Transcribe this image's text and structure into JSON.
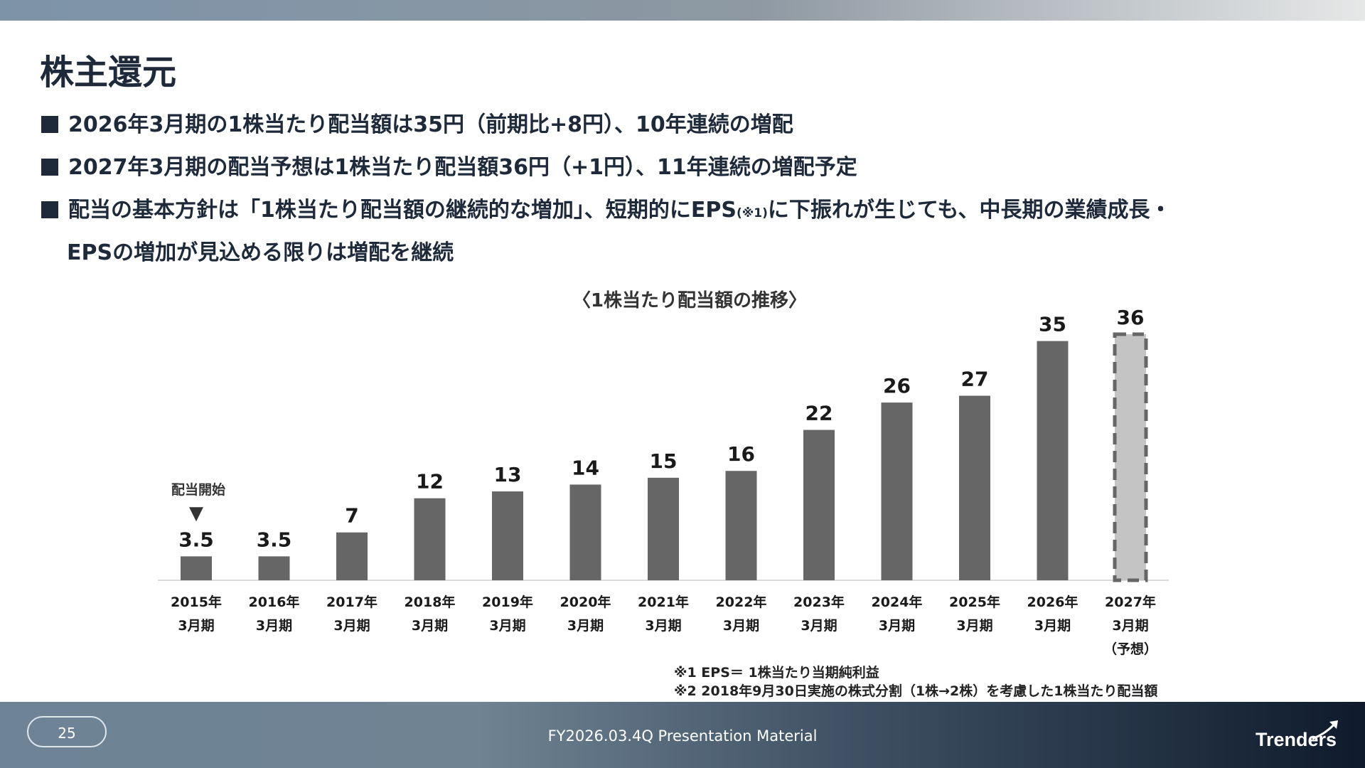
{
  "page": {
    "title": "株主還元",
    "page_number": "25",
    "footer_text": "FY2026.03.4Q Presentation Material",
    "logo_text": "Trenders"
  },
  "bullets": [
    {
      "text": "2026年3月期の1株当たり配当額は35円（前期比+8円）、10年連続の増配"
    },
    {
      "text": "2027年3月期の配当予想は1株当たり配当額36円（+1円）、11年連続の増配予定"
    },
    {
      "text_before": "配当の基本方針は「1株当たり配当額の継続的な増加」、短期的にEPS",
      "note": "(※1)",
      "text_after": "に下振れが生じても、中長期の業績成長・",
      "continuation": "EPSの増加が見込める限りは増配を継続"
    }
  ],
  "footnotes": [
    "※1 EPS＝ 1株当たり当期純利益",
    "※2 2018年9月30日実施の株式分割（1株→2株）を考慮した1株当たり配当額"
  ],
  "chart_data": {
    "type": "bar",
    "title": "〈1株当たり配当額の推移〉",
    "categories": [
      [
        "2015年",
        "3月期"
      ],
      [
        "2016年",
        "3月期"
      ],
      [
        "2017年",
        "3月期"
      ],
      [
        "2018年",
        "3月期"
      ],
      [
        "2019年",
        "3月期"
      ],
      [
        "2020年",
        "3月期"
      ],
      [
        "2021年",
        "3月期"
      ],
      [
        "2022年",
        "3月期"
      ],
      [
        "2023年",
        "3月期"
      ],
      [
        "2024年",
        "3月期"
      ],
      [
        "2025年",
        "3月期"
      ],
      [
        "2026年",
        "3月期"
      ],
      [
        "2027年",
        "3月期",
        "（予想）"
      ]
    ],
    "values": [
      3.5,
      3.5,
      7,
      12,
      13,
      14,
      15,
      16,
      22,
      26,
      27,
      35,
      36
    ],
    "forecast": [
      false,
      false,
      false,
      false,
      false,
      false,
      false,
      false,
      false,
      false,
      false,
      false,
      true
    ],
    "annotation": {
      "text": "配当開始",
      "category_index": 0,
      "marker": "▼"
    },
    "ylim": [
      0,
      36
    ],
    "colors": {
      "actual": "#666666",
      "forecast_fill": "#c4c4c4",
      "forecast_border": "#666666",
      "axis": "#d0d0d0"
    }
  }
}
